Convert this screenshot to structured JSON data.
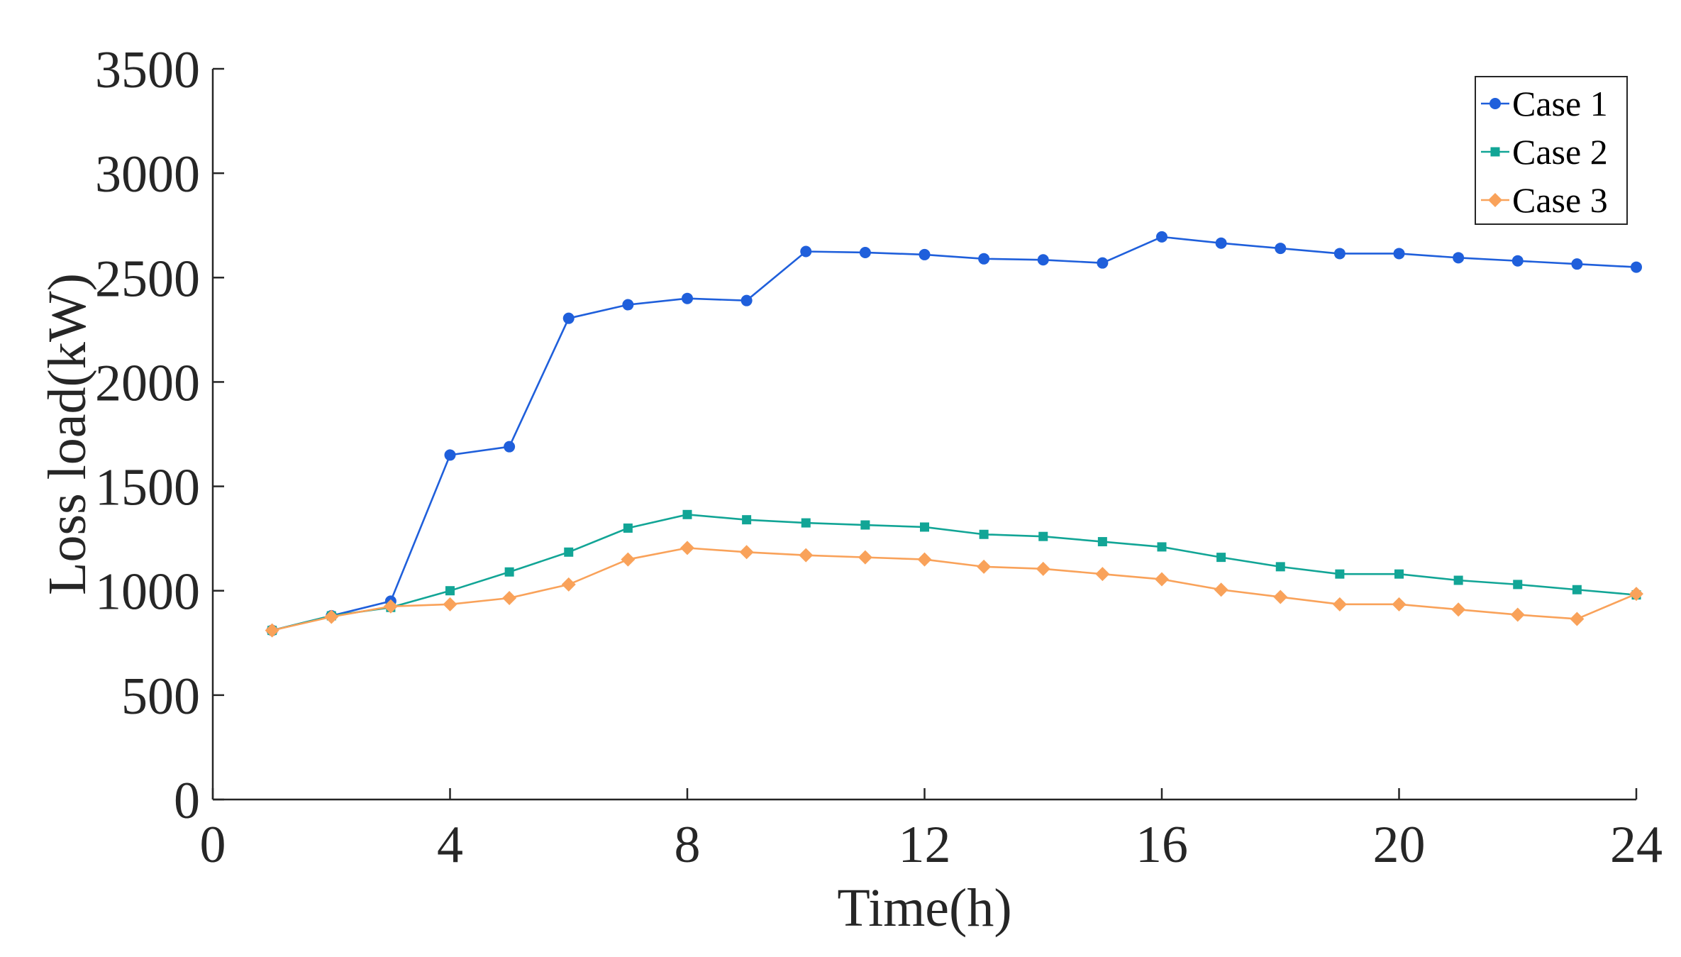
{
  "chart_data": {
    "type": "line",
    "title": "",
    "xlabel": "Time(h)",
    "ylabel": "Loss load(kW)",
    "xlim": [
      0,
      24
    ],
    "ylim": [
      0,
      3500
    ],
    "xticks": [
      0,
      4,
      8,
      12,
      16,
      20,
      24
    ],
    "yticks": [
      0,
      500,
      1000,
      1500,
      2000,
      2500,
      3000,
      3500
    ],
    "grid": false,
    "legend_position": "top-right",
    "x": [
      1,
      2,
      3,
      4,
      5,
      6,
      7,
      8,
      9,
      10,
      11,
      12,
      13,
      14,
      15,
      16,
      17,
      18,
      19,
      20,
      21,
      22,
      23,
      24
    ],
    "series": [
      {
        "name": "Case 1",
        "color": "#1f5fdb",
        "marker": "circle",
        "values": [
          810,
          880,
          950,
          1650,
          1690,
          2305,
          2370,
          2400,
          2390,
          2625,
          2620,
          2610,
          2590,
          2585,
          2570,
          2695,
          2665,
          2640,
          2615,
          2615,
          2595,
          2580,
          2565,
          2550
        ]
      },
      {
        "name": "Case 2",
        "color": "#12a596",
        "marker": "square",
        "values": [
          810,
          880,
          920,
          1000,
          1090,
          1185,
          1300,
          1365,
          1340,
          1325,
          1315,
          1305,
          1270,
          1260,
          1235,
          1210,
          1160,
          1115,
          1080,
          1080,
          1050,
          1030,
          1005,
          980
        ]
      },
      {
        "name": "Case 3",
        "color": "#f9a25a",
        "marker": "diamond",
        "values": [
          810,
          875,
          925,
          935,
          965,
          1030,
          1150,
          1205,
          1185,
          1170,
          1160,
          1150,
          1115,
          1105,
          1080,
          1055,
          1005,
          970,
          935,
          935,
          910,
          885,
          865,
          985
        ]
      }
    ]
  }
}
